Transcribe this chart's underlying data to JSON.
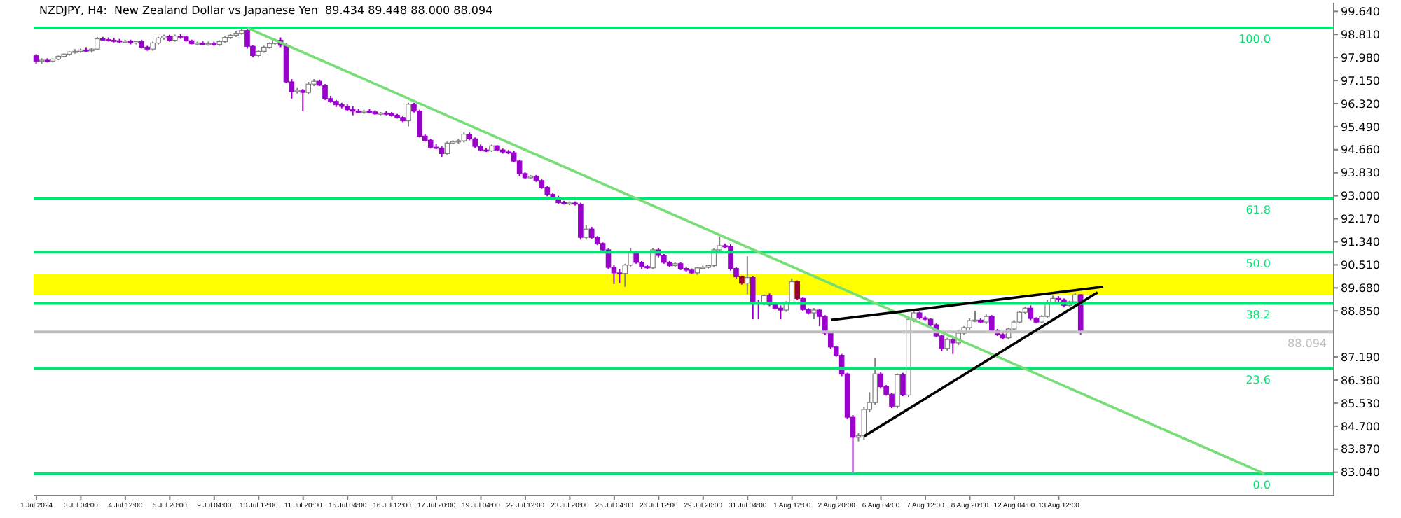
{
  "chart_data": {
    "type": "candlestick",
    "title": "NZDJPY, H4:  New Zealand Dollar vs Japanese Yen  89.434 89.448 88.000 88.094",
    "categories": [
      "1 Jul 2024",
      null,
      null,
      null,
      null,
      null,
      null,
      null,
      "3 Jul 04:00",
      null,
      null,
      null,
      null,
      null,
      null,
      null,
      "4 Jul 12:00",
      null,
      null,
      null,
      null,
      null,
      null,
      null,
      "5 Jul 20:00",
      null,
      null,
      null,
      null,
      null,
      null,
      null,
      "9 Jul 04:00",
      null,
      null,
      null,
      null,
      null,
      null,
      null,
      "10 Jul 12:00",
      null,
      null,
      null,
      null,
      null,
      null,
      null,
      "11 Jul 20:00",
      null,
      null,
      null,
      null,
      null,
      null,
      null,
      "15 Jul 04:00",
      null,
      null,
      null,
      null,
      null,
      null,
      null,
      "16 Jul 12:00",
      null,
      null,
      null,
      null,
      null,
      null,
      null,
      "17 Jul 20:00",
      null,
      null,
      null,
      null,
      null,
      null,
      null,
      "19 Jul 04:00",
      null,
      null,
      null,
      null,
      null,
      null,
      null,
      "22 Jul 12:00",
      null,
      null,
      null,
      null,
      null,
      null,
      null,
      "23 Jul 20:00",
      null,
      null,
      null,
      null,
      null,
      null,
      null,
      "25 Jul 04:00",
      null,
      null,
      null,
      null,
      null,
      null,
      null,
      "26 Jul 12:00",
      null,
      null,
      null,
      null,
      null,
      null,
      null,
      "29 Jul 20:00",
      null,
      null,
      null,
      null,
      null,
      null,
      null,
      "31 Jul 04:00",
      null,
      null,
      null,
      null,
      null,
      null,
      null,
      "1 Aug 12:00",
      null,
      null,
      null,
      null,
      null,
      null,
      null,
      "2 Aug 20:00",
      null,
      null,
      null,
      null,
      null,
      null,
      null,
      "6 Aug 04:00",
      null,
      null,
      null,
      null,
      null,
      null,
      null,
      "7 Aug 12:00",
      null,
      null,
      null,
      null,
      null,
      null,
      null,
      "8 Aug 20:00",
      null,
      null,
      null,
      null,
      null,
      null,
      null,
      "12 Aug 04:00",
      null,
      null,
      null,
      null,
      null,
      null,
      null,
      "13 Aug 12:00",
      null,
      null,
      null,
      null,
      null,
      null,
      null,
      null,
      null,
      null,
      null,
      null,
      null,
      null,
      null,
      null,
      null,
      null,
      null,
      null,
      null,
      null,
      null,
      null,
      null,
      null,
      null,
      null,
      null,
      null,
      null,
      null,
      null,
      null,
      null,
      null,
      null,
      null,
      null,
      null,
      null,
      null,
      null,
      null,
      null,
      null,
      null,
      null,
      null
    ],
    "ohlc": [
      [
        98.04,
        98.1,
        97.75,
        97.85
      ],
      [
        97.85,
        97.95,
        97.75,
        97.88
      ],
      [
        97.88,
        97.95,
        97.8,
        97.85
      ],
      [
        97.85,
        97.95,
        97.8,
        97.92
      ],
      [
        97.92,
        98.05,
        97.88,
        98.02
      ],
      [
        98.02,
        98.12,
        97.98,
        98.1
      ],
      [
        98.1,
        98.2,
        98.05,
        98.18
      ],
      [
        98.18,
        98.28,
        98.12,
        98.2
      ],
      [
        98.2,
        98.3,
        98.15,
        98.25
      ],
      [
        98.25,
        98.35,
        98.18,
        98.22
      ],
      [
        98.22,
        98.32,
        98.15,
        98.28
      ],
      [
        98.28,
        98.72,
        98.25,
        98.65
      ],
      [
        98.65,
        98.72,
        98.58,
        98.62
      ],
      [
        98.62,
        98.7,
        98.55,
        98.6
      ],
      [
        98.6,
        98.68,
        98.52,
        98.58
      ],
      [
        98.58,
        98.65,
        98.5,
        98.55
      ],
      [
        98.55,
        98.62,
        98.5,
        98.57
      ],
      [
        98.57,
        98.62,
        98.45,
        98.5
      ],
      [
        98.5,
        98.58,
        98.45,
        98.55
      ],
      [
        98.55,
        98.62,
        98.3,
        98.35
      ],
      [
        98.35,
        98.4,
        98.22,
        98.28
      ],
      [
        98.28,
        98.55,
        98.22,
        98.5
      ],
      [
        98.5,
        98.72,
        98.45,
        98.68
      ],
      [
        98.68,
        98.8,
        98.62,
        98.75
      ],
      [
        98.75,
        98.8,
        98.55,
        98.6
      ],
      [
        98.6,
        98.8,
        98.55,
        98.75
      ],
      [
        98.75,
        98.82,
        98.65,
        98.72
      ],
      [
        98.72,
        98.76,
        98.55,
        98.58
      ],
      [
        98.58,
        98.62,
        98.45,
        98.48
      ],
      [
        98.48,
        98.55,
        98.42,
        98.5
      ],
      [
        98.5,
        98.56,
        98.42,
        98.45
      ],
      [
        98.45,
        98.55,
        98.4,
        98.48
      ],
      [
        98.48,
        98.55,
        98.4,
        98.45
      ],
      [
        98.45,
        98.6,
        98.4,
        98.55
      ],
      [
        98.55,
        98.75,
        98.5,
        98.7
      ],
      [
        98.7,
        98.82,
        98.65,
        98.78
      ],
      [
        98.78,
        98.92,
        98.72,
        98.85
      ],
      [
        98.85,
        99.0,
        98.8,
        98.95
      ],
      [
        98.95,
        99.04,
        98.3,
        98.38
      ],
      [
        98.38,
        98.42,
        97.98,
        98.05
      ],
      [
        98.05,
        98.25,
        97.98,
        98.2
      ],
      [
        98.2,
        98.4,
        98.15,
        98.35
      ],
      [
        98.35,
        98.52,
        98.3,
        98.48
      ],
      [
        98.48,
        98.65,
        98.42,
        98.6
      ],
      [
        98.6,
        98.7,
        98.35,
        98.42
      ],
      [
        98.42,
        98.5,
        97.05,
        97.1
      ],
      [
        97.1,
        97.2,
        96.5,
        96.75
      ],
      [
        96.75,
        96.88,
        96.68,
        96.8
      ],
      [
        96.8,
        96.85,
        96.05,
        96.72
      ],
      [
        96.72,
        97.1,
        96.65,
        97.02
      ],
      [
        97.02,
        97.2,
        96.95,
        97.12
      ],
      [
        97.12,
        97.18,
        96.95,
        96.98
      ],
      [
        96.98,
        97.02,
        96.45,
        96.5
      ],
      [
        96.5,
        96.6,
        96.35,
        96.4
      ],
      [
        96.4,
        96.45,
        96.2,
        96.28
      ],
      [
        96.28,
        96.35,
        96.15,
        96.22
      ],
      [
        96.22,
        96.3,
        96.05,
        96.1
      ],
      [
        96.1,
        96.22,
        95.9,
        96.05
      ],
      [
        96.05,
        96.12,
        95.98,
        96.02
      ],
      [
        96.02,
        96.1,
        95.95,
        96.05
      ],
      [
        96.05,
        96.12,
        95.98,
        96.02
      ],
      [
        96.02,
        96.08,
        95.92,
        95.95
      ],
      [
        95.95,
        96.02,
        95.9,
        95.98
      ],
      [
        95.98,
        96.05,
        95.9,
        95.95
      ],
      [
        95.95,
        96.02,
        95.85,
        95.9
      ],
      [
        95.9,
        95.95,
        95.78,
        95.82
      ],
      [
        95.82,
        95.88,
        95.65,
        95.7
      ],
      [
        95.7,
        96.35,
        95.5,
        96.3
      ],
      [
        96.3,
        96.35,
        96.0,
        96.05
      ],
      [
        96.05,
        96.1,
        95.1,
        95.15
      ],
      [
        95.15,
        95.22,
        94.95,
        95.0
      ],
      [
        95.0,
        95.05,
        94.7,
        94.75
      ],
      [
        94.75,
        94.88,
        94.68,
        94.72
      ],
      [
        94.72,
        94.78,
        94.4,
        94.52
      ],
      [
        94.52,
        94.95,
        94.48,
        94.9
      ],
      [
        94.9,
        95.0,
        94.85,
        94.95
      ],
      [
        94.95,
        95.05,
        94.88,
        94.98
      ],
      [
        94.98,
        95.28,
        94.92,
        95.22
      ],
      [
        95.22,
        95.28,
        95.0,
        95.05
      ],
      [
        95.05,
        95.1,
        94.72,
        94.78
      ],
      [
        94.78,
        94.85,
        94.6,
        94.65
      ],
      [
        94.65,
        94.72,
        94.58,
        94.62
      ],
      [
        94.62,
        94.85,
        94.58,
        94.8
      ],
      [
        94.8,
        94.82,
        94.6,
        94.65
      ],
      [
        94.65,
        94.7,
        94.52,
        94.58
      ],
      [
        94.58,
        94.65,
        94.5,
        94.55
      ],
      [
        94.55,
        94.62,
        94.2,
        94.25
      ],
      [
        94.25,
        94.3,
        93.7,
        93.8
      ],
      [
        93.8,
        93.85,
        93.62,
        93.65
      ],
      [
        93.65,
        93.75,
        93.6,
        93.7
      ],
      [
        93.7,
        93.75,
        93.5,
        93.55
      ],
      [
        93.55,
        93.6,
        93.25,
        93.3
      ],
      [
        93.3,
        93.35,
        92.98,
        93.05
      ],
      [
        93.05,
        93.12,
        92.9,
        92.95
      ],
      [
        92.95,
        93.0,
        92.7,
        92.75
      ],
      [
        92.75,
        92.82,
        92.68,
        92.72
      ],
      [
        92.72,
        92.8,
        92.66,
        92.74
      ],
      [
        92.74,
        92.8,
        92.65,
        92.7
      ],
      [
        92.7,
        92.75,
        91.42,
        91.5
      ],
      [
        91.5,
        91.95,
        91.42,
        91.8
      ],
      [
        91.8,
        91.88,
        91.45,
        91.5
      ],
      [
        91.5,
        91.55,
        91.22,
        91.28
      ],
      [
        91.28,
        91.32,
        90.98,
        91.05
      ],
      [
        91.05,
        91.1,
        90.35,
        90.42
      ],
      [
        90.42,
        90.5,
        89.82,
        90.22
      ],
      [
        90.22,
        90.35,
        89.85,
        90.2
      ],
      [
        90.2,
        90.55,
        89.72,
        90.5
      ],
      [
        90.5,
        91.1,
        90.45,
        90.95
      ],
      [
        90.95,
        91.02,
        90.55,
        90.6
      ],
      [
        90.6,
        90.65,
        90.35,
        90.45
      ],
      [
        90.45,
        90.52,
        90.35,
        90.4
      ],
      [
        90.4,
        91.12,
        90.35,
        91.05
      ],
      [
        91.05,
        91.1,
        90.78,
        90.85
      ],
      [
        90.85,
        90.9,
        90.55,
        90.6
      ],
      [
        90.6,
        90.65,
        90.42,
        90.48
      ],
      [
        90.48,
        90.6,
        90.45,
        90.55
      ],
      [
        90.55,
        90.6,
        90.32,
        90.38
      ],
      [
        90.38,
        90.45,
        90.25,
        90.32
      ],
      [
        90.32,
        90.38,
        90.18,
        90.22
      ],
      [
        90.22,
        90.42,
        90.15,
        90.4
      ],
      [
        90.4,
        90.48,
        90.35,
        90.42
      ],
      [
        90.42,
        90.52,
        90.38,
        90.48
      ],
      [
        90.48,
        91.1,
        90.42,
        91.05
      ],
      [
        91.05,
        91.52,
        90.98,
        91.2
      ],
      [
        91.2,
        91.28,
        91.1,
        91.18
      ],
      [
        91.18,
        91.25,
        90.3,
        90.38
      ],
      [
        90.38,
        90.42,
        90.02,
        90.08
      ],
      [
        90.08,
        90.12,
        89.8,
        89.85
      ],
      [
        89.85,
        90.82,
        89.45,
        90.05
      ],
      [
        90.05,
        90.1,
        88.55,
        89.15
      ],
      [
        89.15,
        89.25,
        88.55,
        89.12
      ],
      [
        89.12,
        89.45,
        89.05,
        89.4
      ],
      [
        89.4,
        89.48,
        89.02,
        89.08
      ],
      [
        89.08,
        89.12,
        88.9,
        88.95
      ],
      [
        88.95,
        89.05,
        88.55,
        88.88
      ],
      [
        88.88,
        89.2,
        88.82,
        89.15
      ],
      [
        89.15,
        90.02,
        89.08,
        89.9
      ],
      [
        89.9,
        89.95,
        89.25,
        89.3
      ],
      [
        89.3,
        89.35,
        88.85,
        88.9
      ],
      [
        88.9,
        88.95,
        88.72,
        88.78
      ],
      [
        88.78,
        88.95,
        88.55,
        88.88
      ],
      [
        88.88,
        88.92,
        88.3,
        88.65
      ],
      [
        88.65,
        88.7,
        87.98,
        88.05
      ],
      [
        88.05,
        88.1,
        87.48,
        87.55
      ],
      [
        87.55,
        87.6,
        87.2,
        87.25
      ],
      [
        87.25,
        87.3,
        86.5,
        86.58
      ],
      [
        86.58,
        86.62,
        84.95,
        85.02
      ],
      [
        85.02,
        85.1,
        83.0,
        84.3
      ],
      [
        84.3,
        84.45,
        84.15,
        84.35
      ],
      [
        84.35,
        85.4,
        84.2,
        85.3
      ],
      [
        85.3,
        85.92,
        85.2,
        85.55
      ],
      [
        85.55,
        87.15,
        85.48,
        86.58
      ],
      [
        86.58,
        86.65,
        86.05,
        86.12
      ],
      [
        86.12,
        86.18,
        85.8,
        85.85
      ],
      [
        85.85,
        85.9,
        85.35,
        85.42
      ],
      [
        85.42,
        86.6,
        85.35,
        86.55
      ],
      [
        86.55,
        86.62,
        85.78,
        85.82
      ],
      [
        85.82,
        88.6,
        85.75,
        88.55
      ],
      [
        88.55,
        88.85,
        88.45,
        88.78
      ],
      [
        88.78,
        88.82,
        88.55,
        88.6
      ],
      [
        88.6,
        88.68,
        88.48,
        88.55
      ],
      [
        88.55,
        88.58,
        88.3,
        88.35
      ],
      [
        88.35,
        88.4,
        87.9,
        87.95
      ],
      [
        87.95,
        88.0,
        87.4,
        87.5
      ],
      [
        87.5,
        87.88,
        87.42,
        87.82
      ],
      [
        87.82,
        87.9,
        87.3,
        87.7
      ],
      [
        87.7,
        88.15,
        87.62,
        88.05
      ],
      [
        88.05,
        88.3,
        87.98,
        88.25
      ],
      [
        88.25,
        88.58,
        88.18,
        88.5
      ],
      [
        88.5,
        88.85,
        88.45,
        88.52
      ],
      [
        88.52,
        88.58,
        88.4,
        88.45
      ],
      [
        88.45,
        88.72,
        88.38,
        88.65
      ],
      [
        88.65,
        88.7,
        88.1,
        88.15
      ],
      [
        88.15,
        88.2,
        87.95,
        88.0
      ],
      [
        88.0,
        88.05,
        87.82,
        87.88
      ],
      [
        87.88,
        88.25,
        87.82,
        88.2
      ],
      [
        88.2,
        88.52,
        88.15,
        88.45
      ],
      [
        88.45,
        88.85,
        88.4,
        88.8
      ],
      [
        88.8,
        89.0,
        88.75,
        88.95
      ],
      [
        88.95,
        89.05,
        88.52,
        88.58
      ],
      [
        88.58,
        88.62,
        88.4,
        88.45
      ],
      [
        88.45,
        88.7,
        88.4,
        88.65
      ],
      [
        88.65,
        89.25,
        88.6,
        89.15
      ],
      [
        89.15,
        89.4,
        89.08,
        89.3
      ],
      [
        89.3,
        89.38,
        89.15,
        89.25
      ],
      [
        89.25,
        89.3,
        88.98,
        89.05
      ],
      [
        89.05,
        89.22,
        89.0,
        89.18
      ],
      [
        89.18,
        89.5,
        89.12,
        89.43
      ],
      [
        89.434,
        89.448,
        88.0,
        88.094
      ],
      null,
      null,
      null,
      null,
      null,
      null,
      null,
      null,
      null,
      null,
      null,
      null,
      null,
      null,
      null,
      null,
      null,
      null,
      null,
      null,
      null,
      null,
      null,
      null,
      null,
      null,
      null,
      null,
      null,
      null,
      null,
      null,
      null,
      null,
      null,
      null,
      null,
      null,
      null,
      null,
      null,
      null,
      null,
      null,
      null
    ],
    "colors": [
      "#9900cc",
      "#ffffff",
      "#9900cc",
      "#ffffff",
      "#ffffff",
      "#ffffff",
      "#ffffff",
      "#ffffff",
      "#ffffff",
      "#9900cc",
      "#ffffff",
      "#ffffff",
      "#9900cc",
      "#9900cc",
      "#9900cc",
      "#9900cc",
      "#ffffff",
      "#9900cc",
      "#ffffff",
      "#9900cc",
      "#9900cc",
      "#ffffff",
      "#ffffff",
      "#ffffff",
      "#9900cc",
      "#ffffff",
      "#9900cc",
      "#9900cc",
      "#9900cc",
      "#ffffff",
      "#9900cc",
      "#ffffff",
      "#9900cc",
      "#ffffff",
      "#ffffff",
      "#ffffff",
      "#ffffff",
      "#ffffff",
      "#9900cc",
      "#9900cc",
      "#ffffff",
      "#ffffff",
      "#ffffff",
      "#ffffff",
      "#9900cc",
      "#9900cc",
      "#9900cc",
      "#ffffff",
      "#9900cc",
      "#ffffff",
      "#ffffff",
      "#9900cc",
      "#9900cc",
      "#9900cc",
      "#9900cc",
      "#9900cc",
      "#9900cc",
      "#9900cc",
      "#9900cc",
      "#ffffff",
      "#9900cc",
      "#9900cc",
      "#ffffff",
      "#9900cc",
      "#9900cc",
      "#9900cc",
      "#9900cc",
      "#ffffff",
      "#9900cc",
      "#9900cc",
      "#9900cc",
      "#9900cc",
      "#9900cc",
      "#9900cc",
      "#ffffff",
      "#ffffff",
      "#ffffff",
      "#ffffff",
      "#9900cc",
      "#9900cc",
      "#9900cc",
      "#9900cc",
      "#ffffff",
      "#9900cc",
      "#9900cc",
      "#9900cc",
      "#9900cc",
      "#9900cc",
      "#9900cc",
      "#ffffff",
      "#9900cc",
      "#9900cc",
      "#9900cc",
      "#9900cc",
      "#9900cc",
      "#9900cc",
      "#ffffff",
      "#9900cc",
      "#9900cc",
      "#ffffff",
      "#9900cc",
      "#9900cc",
      "#9900cc",
      "#9900cc",
      "#9900cc",
      "#9900cc",
      "#ffffff",
      "#ffffff",
      "#9900cc",
      "#9900cc",
      "#9900cc",
      "#ffffff",
      "#9900cc",
      "#9900cc",
      "#9900cc",
      "#ffffff",
      "#9900cc",
      "#9900cc",
      "#9900cc",
      "#ffffff",
      "#ffffff",
      "#ffffff",
      "#ffffff",
      "#ffffff",
      "#9900cc",
      "#9900cc",
      "#9900cc",
      "#990033",
      "#ffffff",
      "#9900cc",
      "#9900cc",
      "#ffffff",
      "#9900cc",
      "#9900cc",
      "#9900cc",
      "#ffffff",
      "#ffffff",
      "#990033",
      "#9900cc",
      "#9900cc",
      "#ffffff",
      "#9900cc",
      "#9900cc",
      "#9900cc",
      "#9900cc",
      "#9900cc",
      "#9900cc",
      "#9900cc",
      "#ffffff",
      "#ffffff",
      "#ffffff",
      "#ffffff",
      "#9900cc",
      "#9900cc",
      "#9900cc",
      "#ffffff",
      "#9900cc",
      "#ffffff",
      "#ffffff",
      "#9900cc",
      "#9900cc",
      "#9900cc",
      "#9900cc",
      "#9900cc",
      "#ffffff",
      "#9900cc",
      "#ffffff",
      "#ffffff",
      "#ffffff",
      "#ffffff",
      "#9900cc",
      "#ffffff",
      "#9900cc",
      "#9900cc",
      "#9900cc",
      "#ffffff",
      "#ffffff",
      "#ffffff",
      "#ffffff",
      "#9900cc",
      "#9900cc",
      "#ffffff",
      "#ffffff",
      "#ffffff",
      "#9900cc",
      "#9900cc",
      "#ffffff",
      "#ffffff",
      "#9900cc",
      null,
      null,
      null,
      null,
      null,
      null,
      null,
      null,
      null,
      null,
      null,
      null,
      null,
      null,
      null,
      null,
      null,
      null,
      null,
      null,
      null,
      null,
      null,
      null,
      null,
      null,
      null,
      null,
      null,
      null,
      null,
      null,
      null,
      null,
      null,
      null,
      null,
      null,
      null,
      null,
      null,
      null,
      null,
      null,
      null
    ],
    "series": [
      {
        "type": "line",
        "color": "#77dd77",
        "values": [
          null,
          null,
          null,
          null,
          null,
          null,
          null,
          null,
          null,
          null,
          null,
          null,
          null,
          null,
          null,
          null,
          null,
          null,
          null,
          null,
          null,
          null,
          null,
          null,
          null,
          null,
          null,
          null,
          null,
          null,
          null,
          null,
          null,
          null,
          null,
          null,
          null,
          null,
          99.04,
          null,
          null,
          null,
          null,
          null,
          null,
          null,
          null,
          null,
          null,
          null,
          null,
          null,
          null,
          null,
          null,
          null,
          null,
          null,
          null,
          null,
          null,
          null,
          null,
          null,
          null,
          null,
          null,
          null,
          null,
          null,
          null,
          null,
          null,
          null,
          null,
          null,
          null,
          null,
          null,
          null,
          null,
          null,
          null,
          null,
          null,
          null,
          null,
          null,
          null,
          null,
          null,
          null,
          null,
          null,
          null,
          null,
          null,
          null,
          null,
          null,
          null,
          null,
          null,
          null,
          null,
          null,
          null,
          null,
          null,
          null,
          null,
          null,
          null,
          null,
          null,
          null,
          null,
          null,
          null,
          null,
          null,
          null,
          null,
          null,
          null,
          null,
          null,
          null,
          null,
          null,
          null,
          null,
          null,
          null,
          null,
          null,
          null,
          null,
          null,
          null,
          null,
          null,
          null,
          null,
          null,
          null,
          null,
          null,
          null,
          null,
          null,
          null,
          null,
          null,
          null,
          null,
          null,
          null,
          null,
          null,
          null,
          null,
          null,
          null,
          null,
          null,
          null,
          null,
          null,
          null,
          null,
          null,
          null,
          null,
          null,
          null,
          null,
          null,
          null,
          null,
          null,
          null,
          null,
          null,
          null,
          null,
          null,
          null,
          null,
          null,
          null,
          null,
          null,
          null,
          null,
          null,
          null,
          null,
          null,
          null,
          null,
          null,
          null,
          null,
          null,
          null,
          null,
          null,
          null,
          null,
          null,
          null,
          null,
          null,
          null,
          null,
          null,
          null,
          null,
          null,
          null,
          82.99,
          null,
          null,
          null,
          null,
          null,
          null,
          null,
          null,
          null,
          null,
          null,
          null
        ]
      },
      {
        "type": "line",
        "color": "#000000",
        "values": [
          null,
          null,
          null,
          null,
          null,
          null,
          null,
          null,
          null,
          null,
          null,
          null,
          null,
          null,
          null,
          null,
          null,
          null,
          null,
          null,
          null,
          null,
          null,
          null,
          null,
          null,
          null,
          null,
          null,
          null,
          null,
          null,
          null,
          null,
          null,
          null,
          null,
          null,
          null,
          null,
          null,
          null,
          null,
          null,
          null,
          null,
          null,
          null,
          null,
          null,
          null,
          null,
          null,
          null,
          null,
          null,
          null,
          null,
          null,
          null,
          null,
          null,
          null,
          null,
          null,
          null,
          null,
          null,
          null,
          null,
          null,
          null,
          null,
          null,
          null,
          null,
          null,
          null,
          null,
          null,
          null,
          null,
          null,
          null,
          null,
          null,
          null,
          null,
          null,
          null,
          null,
          null,
          null,
          null,
          null,
          null,
          null,
          null,
          null,
          null,
          null,
          null,
          null,
          null,
          null,
          null,
          null,
          null,
          null,
          null,
          null,
          null,
          null,
          null,
          null,
          null,
          null,
          null,
          null,
          null,
          null,
          null,
          null,
          null,
          null,
          null,
          null,
          null,
          null,
          null,
          null,
          null,
          null,
          null,
          null,
          null,
          null,
          null,
          null,
          null,
          null,
          null,
          null,
          88.52,
          null,
          null,
          null,
          null,
          null,
          null,
          null,
          null,
          null,
          null,
          null,
          null,
          null,
          null,
          null,
          null,
          null,
          null,
          null,
          null,
          null,
          null,
          null,
          null,
          null,
          null,
          null,
          null,
          null,
          null,
          null,
          null,
          null,
          null,
          null,
          null,
          null,
          null,
          null,
          null,
          null,
          null,
          null,
          null,
          null,
          null,
          null,
          null,
          89.72,
          null,
          null,
          null,
          null,
          null,
          null,
          null,
          null,
          null,
          null,
          null,
          null,
          null,
          null,
          null,
          null,
          null,
          null,
          null,
          null,
          null,
          null,
          null,
          null,
          null,
          null,
          null,
          null,
          null,
          null,
          null,
          null,
          null,
          null,
          null,
          null,
          null,
          null,
          null,
          null,
          null
        ]
      },
      {
        "type": "line",
        "color": "#000000",
        "values": [
          null,
          null,
          null,
          null,
          null,
          null,
          null,
          null,
          null,
          null,
          null,
          null,
          null,
          null,
          null,
          null,
          null,
          null,
          null,
          null,
          null,
          null,
          null,
          null,
          null,
          null,
          null,
          null,
          null,
          null,
          null,
          null,
          null,
          null,
          null,
          null,
          null,
          null,
          null,
          null,
          null,
          null,
          null,
          null,
          null,
          null,
          null,
          null,
          null,
          null,
          null,
          null,
          null,
          null,
          null,
          null,
          null,
          null,
          null,
          null,
          null,
          null,
          null,
          null,
          null,
          null,
          null,
          null,
          null,
          null,
          null,
          null,
          null,
          null,
          null,
          null,
          null,
          null,
          null,
          null,
          null,
          null,
          null,
          null,
          null,
          null,
          null,
          null,
          null,
          null,
          null,
          null,
          null,
          null,
          null,
          null,
          null,
          null,
          null,
          null,
          null,
          null,
          null,
          null,
          null,
          null,
          null,
          null,
          null,
          null,
          null,
          null,
          null,
          null,
          null,
          null,
          null,
          null,
          null,
          null,
          null,
          null,
          null,
          null,
          null,
          null,
          null,
          null,
          null,
          null,
          null,
          null,
          null,
          null,
          null,
          null,
          null,
          null,
          null,
          null,
          null,
          null,
          null,
          null,
          null,
          null,
          null,
          null,
          null,
          84.34,
          null,
          null,
          null,
          null,
          null,
          null,
          null,
          null,
          null,
          null,
          null,
          null,
          null,
          null,
          null,
          null,
          null,
          null,
          null,
          null,
          null,
          null,
          null,
          null,
          null,
          null,
          null,
          null,
          null,
          null,
          null,
          null,
          null,
          null,
          null,
          null,
          null,
          null,
          null,
          null,
          null,
          89.52,
          null,
          null,
          null,
          null,
          null,
          null,
          null,
          null,
          null,
          null,
          null,
          null,
          null,
          null,
          null,
          null,
          null,
          null,
          null,
          null,
          null,
          null,
          null,
          null,
          null,
          null,
          null,
          null,
          null,
          null,
          null,
          null,
          null,
          null,
          null,
          null,
          null,
          null,
          null,
          null,
          null,
          null
        ]
      }
    ],
    "ref_lines": [
      {
        "axis": "y",
        "value": 99.04,
        "color": "#00e676"
      },
      {
        "axis": "y",
        "value": 92.91,
        "color": "#00e676"
      },
      {
        "axis": "y",
        "value": 90.97,
        "color": "#00e676"
      },
      {
        "axis": "y",
        "value": 89.12,
        "color": "#00e676"
      },
      {
        "axis": "y",
        "value": 86.78,
        "color": "#00e676"
      },
      {
        "axis": "y",
        "value": 82.99,
        "color": "#00e676"
      },
      {
        "axis": "y",
        "value": 88.094,
        "label": "88.094",
        "color": "#c0c0c0"
      }
    ],
    "annotations": [
      {
        "text": "100.0",
        "y": 99.04
      },
      {
        "text": "61.8",
        "y": 92.91
      },
      {
        "text": "50.0",
        "y": 90.97
      },
      {
        "text": "38.2",
        "y": 89.12
      },
      {
        "text": "23.6",
        "y": 86.78
      },
      {
        "text": "0.0",
        "y": 82.99
      }
    ],
    "bands": [
      {
        "axis": "y",
        "from": 89.42,
        "to": 90.17,
        "color": "#ffff00"
      }
    ],
    "ylim": [
      82.2,
      99.95
    ],
    "yticks": [
      {
        "value": 99.64,
        "label": "99.640"
      },
      {
        "value": 98.81,
        "label": "98.810"
      },
      {
        "value": 97.98,
        "label": "97.980"
      },
      {
        "value": 97.15,
        "label": "97.150"
      },
      {
        "value": 96.32,
        "label": "96.320"
      },
      {
        "value": 95.49,
        "label": "95.490"
      },
      {
        "value": 94.66,
        "label": "94.660"
      },
      {
        "value": 93.83,
        "label": "93.830"
      },
      {
        "value": 93.0,
        "label": "93.000"
      },
      {
        "value": 92.17,
        "label": "92.170"
      },
      {
        "value": 91.34,
        "label": "91.340"
      },
      {
        "value": 90.51,
        "label": "90.510"
      },
      {
        "value": 89.68,
        "label": "89.680"
      },
      {
        "value": 88.85,
        "label": "88.850"
      },
      {
        "value": 87.19,
        "label": "87.190"
      },
      {
        "value": 86.36,
        "label": "86.360"
      },
      {
        "value": 85.53,
        "label": "85.530"
      },
      {
        "value": 84.7,
        "label": "84.700"
      },
      {
        "value": 83.87,
        "label": "83.870"
      },
      {
        "value": 83.04,
        "label": "83.040"
      }
    ]
  }
}
